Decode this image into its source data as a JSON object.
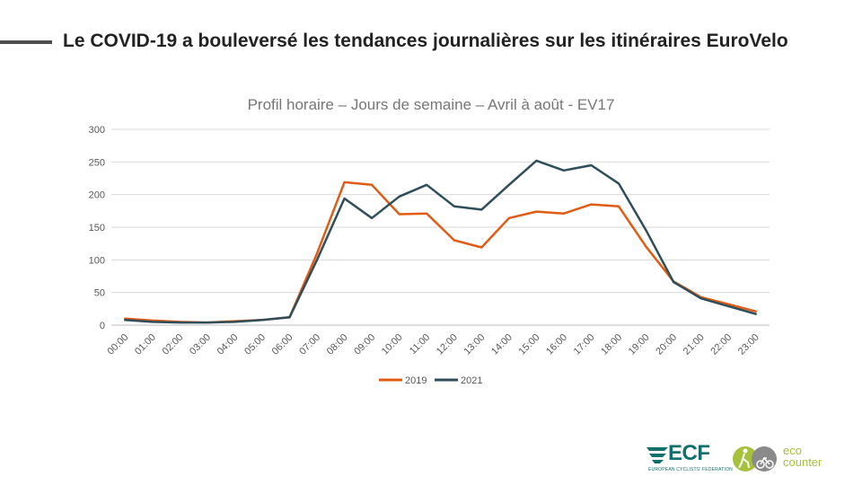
{
  "slide": {
    "title": "Le COVID-19 a bouleversé les tendances journalières sur les itinéraires EuroVelo"
  },
  "chart_data": {
    "type": "line",
    "title": "Profil horaire – Jours de semaine – Avril à août - EV17",
    "xlabel": "",
    "ylabel": "",
    "ylim": [
      0,
      300
    ],
    "yticks": [
      "0",
      "50",
      "100",
      "150",
      "200",
      "250",
      "300"
    ],
    "grid": true,
    "legend": "bottom",
    "x": [
      "00:00",
      "01:00",
      "02:00",
      "03:00",
      "04:00",
      "05:00",
      "06:00",
      "07:00",
      "08:00",
      "09:00",
      "10:00",
      "11:00",
      "12:00",
      "13:00",
      "14:00",
      "15:00",
      "16:00",
      "17:00",
      "18:00",
      "19:00",
      "20:00",
      "21:00",
      "22:00",
      "23:00"
    ],
    "series": [
      {
        "name": "2019",
        "color": "#e05c15",
        "values": [
          10,
          7,
          5,
          4,
          6,
          8,
          12,
          110,
          219,
          215,
          170,
          171,
          130,
          119,
          164,
          174,
          171,
          185,
          182,
          120,
          67,
          43,
          32,
          21
        ]
      },
      {
        "name": "2021",
        "color": "#2f4e5a",
        "values": [
          8,
          5,
          4,
          4,
          5,
          8,
          12,
          100,
          194,
          164,
          197,
          215,
          182,
          177,
          215,
          252,
          237,
          245,
          217,
          145,
          66,
          41,
          29,
          17
        ]
      }
    ]
  },
  "logos": {
    "ecf": "ECF",
    "ecf_sub": "EUROPEAN CYCLISTS' FEDERATION",
    "eco_line1": "eco",
    "eco_line2": "counter"
  },
  "icons": [
    "ecf-wing-icon",
    "eco-counter-figures-icon"
  ]
}
